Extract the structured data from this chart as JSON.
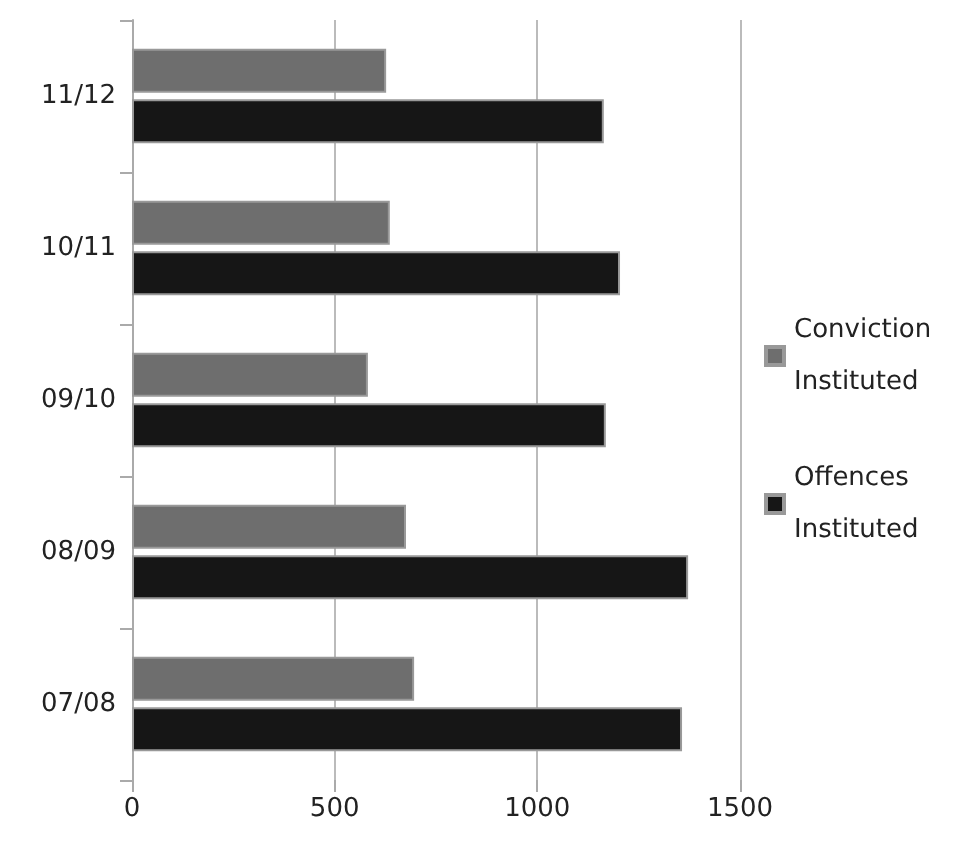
{
  "chart_data": {
    "type": "bar",
    "orientation": "horizontal",
    "categories": [
      "11/12",
      "10/11",
      "09/10",
      "08/09",
      "07/08"
    ],
    "series": [
      {
        "name": "Conviction Instituted",
        "color": "#6e6e6e",
        "values": [
          627,
          636,
          582,
          676,
          696
        ]
      },
      {
        "name": "Offences Instituted",
        "color": "#161616",
        "values": [
          1164,
          1204,
          1169,
          1372,
          1357
        ]
      }
    ],
    "xlim": [
      0,
      1500
    ],
    "xticks": [
      0,
      500,
      1000,
      1500
    ],
    "grid": "x",
    "legend": "right"
  }
}
